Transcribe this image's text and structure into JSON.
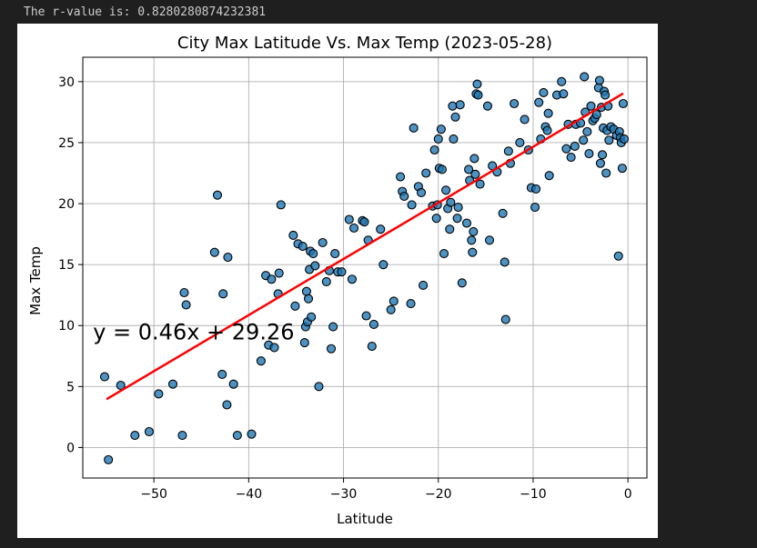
{
  "output_text": "The r-value is: 0.8280280874232381",
  "chart_data": {
    "type": "scatter",
    "title": "City Max Latitude Vs. Max Temp (2023-05-28)",
    "xlabel": "Latitude",
    "ylabel": "Max Temp",
    "xlim": [
      -57.5,
      2.0
    ],
    "ylim": [
      -2.5,
      32.0
    ],
    "xticks": [
      -50,
      -40,
      -30,
      -20,
      -10,
      0
    ],
    "xtick_labels": [
      "−50",
      "−40",
      "−30",
      "−20",
      "−10",
      "0"
    ],
    "yticks": [
      0,
      5,
      10,
      15,
      20,
      25,
      30
    ],
    "ytick_labels": [
      "0",
      "5",
      "10",
      "15",
      "20",
      "25",
      "30"
    ],
    "grid": true,
    "point_color": "#1f77b4",
    "point_edge_color": "#000000",
    "regression": {
      "slope": 0.46,
      "intercept": 29.26,
      "x_range": [
        -55,
        -0.5
      ],
      "color": "#ff0000",
      "equation_label": "y = 0.46x + 29.26",
      "label_position": [
        -57,
        9
      ]
    },
    "points": [
      [
        -54.8,
        -1.0
      ],
      [
        -55.2,
        5.8
      ],
      [
        -53.5,
        5.1
      ],
      [
        -52,
        1.0
      ],
      [
        -50.5,
        1.3
      ],
      [
        -49.5,
        4.4
      ],
      [
        -48,
        5.2
      ],
      [
        -47,
        1.0
      ],
      [
        -46.8,
        12.7
      ],
      [
        -46.6,
        11.7
      ],
      [
        -43.6,
        16.0
      ],
      [
        -43.3,
        20.7
      ],
      [
        -42.8,
        6.0
      ],
      [
        -42.7,
        12.6
      ],
      [
        -42.3,
        3.5
      ],
      [
        -42.2,
        15.6
      ],
      [
        -41.6,
        5.2
      ],
      [
        -41.2,
        1.0
      ],
      [
        -39.7,
        1.1
      ],
      [
        -38.7,
        7.1
      ],
      [
        -38.2,
        14.1
      ],
      [
        -37.9,
        8.4
      ],
      [
        -37.6,
        13.8
      ],
      [
        -37.3,
        8.2
      ],
      [
        -36.9,
        12.6
      ],
      [
        -36.8,
        14.3
      ],
      [
        -36.6,
        19.9
      ],
      [
        -35.3,
        17.4
      ],
      [
        -35.1,
        11.6
      ],
      [
        -34.8,
        16.7
      ],
      [
        -34.3,
        16.5
      ],
      [
        -34.1,
        8.6
      ],
      [
        -34.0,
        9.9
      ],
      [
        -33.8,
        10.3
      ],
      [
        -33.9,
        12.8
      ],
      [
        -33.7,
        12.2
      ],
      [
        -33.6,
        14.6
      ],
      [
        -33.5,
        16.1
      ],
      [
        -33.4,
        10.7
      ],
      [
        -33.2,
        15.9
      ],
      [
        -33.0,
        14.9
      ],
      [
        -32.6,
        5.0
      ],
      [
        -32.2,
        16.8
      ],
      [
        -31.8,
        13.6
      ],
      [
        -31.5,
        14.5
      ],
      [
        -31.3,
        8.1
      ],
      [
        -31.1,
        9.9
      ],
      [
        -30.9,
        15.9
      ],
      [
        -30.6,
        14.4
      ],
      [
        -30.2,
        14.4
      ],
      [
        -29.4,
        18.7
      ],
      [
        -29.1,
        13.8
      ],
      [
        -28.9,
        18.0
      ],
      [
        -28.0,
        18.6
      ],
      [
        -27.8,
        18.5
      ],
      [
        -27.6,
        10.8
      ],
      [
        -27.4,
        17.0
      ],
      [
        -27.0,
        8.3
      ],
      [
        -26.8,
        10.1
      ],
      [
        -26.1,
        17.9
      ],
      [
        -25.8,
        15.0
      ],
      [
        -25.0,
        11.3
      ],
      [
        -24.7,
        12.0
      ],
      [
        -24.0,
        22.2
      ],
      [
        -23.8,
        21.0
      ],
      [
        -23.6,
        20.6
      ],
      [
        -22.9,
        11.8
      ],
      [
        -22.8,
        19.9
      ],
      [
        -22.6,
        26.2
      ],
      [
        -22.1,
        21.4
      ],
      [
        -21.8,
        20.9
      ],
      [
        -21.6,
        13.3
      ],
      [
        -21.3,
        22.5
      ],
      [
        -20.6,
        19.8
      ],
      [
        -20.4,
        24.4
      ],
      [
        -20.1,
        19.9
      ],
      [
        -20.0,
        25.3
      ],
      [
        -20.2,
        18.8
      ],
      [
        -19.9,
        22.9
      ],
      [
        -19.7,
        26.1
      ],
      [
        -19.6,
        22.8
      ],
      [
        -19.4,
        15.9
      ],
      [
        -19.2,
        21.1
      ],
      [
        -19.0,
        19.6
      ],
      [
        -18.8,
        17.9
      ],
      [
        -18.7,
        20.1
      ],
      [
        -18.5,
        28.0
      ],
      [
        -18.4,
        25.3
      ],
      [
        -18.2,
        27.1
      ],
      [
        -18.0,
        18.8
      ],
      [
        -17.9,
        19.7
      ],
      [
        -17.7,
        28.1
      ],
      [
        -17.5,
        13.5
      ],
      [
        -17.0,
        18.4
      ],
      [
        -16.8,
        22.8
      ],
      [
        -16.7,
        21.9
      ],
      [
        -16.5,
        17.0
      ],
      [
        -16.4,
        16.0
      ],
      [
        -16.3,
        17.7
      ],
      [
        -16.2,
        23.7
      ],
      [
        -16.1,
        22.4
      ],
      [
        -16.0,
        29.0
      ],
      [
        -15.9,
        29.8
      ],
      [
        -15.8,
        28.9
      ],
      [
        -15.6,
        21.6
      ],
      [
        -14.8,
        28.0
      ],
      [
        -14.6,
        17.0
      ],
      [
        -14.3,
        23.1
      ],
      [
        -13.8,
        22.6
      ],
      [
        -13.2,
        19.2
      ],
      [
        -13.0,
        15.2
      ],
      [
        -12.9,
        10.5
      ],
      [
        -12.6,
        24.3
      ],
      [
        -12.4,
        23.3
      ],
      [
        -12.0,
        28.2
      ],
      [
        -11.4,
        25.0
      ],
      [
        -10.9,
        26.9
      ],
      [
        -10.5,
        24.4
      ],
      [
        -10.2,
        21.3
      ],
      [
        -9.8,
        19.7
      ],
      [
        -9.7,
        21.2
      ],
      [
        -9.4,
        28.3
      ],
      [
        -9.2,
        25.3
      ],
      [
        -8.9,
        29.1
      ],
      [
        -8.7,
        26.3
      ],
      [
        -8.5,
        26.0
      ],
      [
        -8.4,
        27.4
      ],
      [
        -8.3,
        22.3
      ],
      [
        -7.5,
        28.9
      ],
      [
        -7.0,
        30.0
      ],
      [
        -6.8,
        29.0
      ],
      [
        -6.5,
        24.5
      ],
      [
        -6.3,
        26.5
      ],
      [
        -6.0,
        23.8
      ],
      [
        -5.6,
        24.7
      ],
      [
        -5.5,
        26.5
      ],
      [
        -5.0,
        26.6
      ],
      [
        -4.7,
        25.2
      ],
      [
        -4.6,
        30.4
      ],
      [
        -4.5,
        27.5
      ],
      [
        -4.3,
        25.9
      ],
      [
        -4.1,
        24.1
      ],
      [
        -3.9,
        28.0
      ],
      [
        -3.7,
        26.8
      ],
      [
        -3.5,
        27.0
      ],
      [
        -3.3,
        27.3
      ],
      [
        -3.1,
        29.5
      ],
      [
        -3.0,
        30.1
      ],
      [
        -2.9,
        23.3
      ],
      [
        -2.8,
        27.9
      ],
      [
        -2.7,
        24.0
      ],
      [
        -2.6,
        26.2
      ],
      [
        -2.5,
        29.2
      ],
      [
        -2.4,
        28.9
      ],
      [
        -2.3,
        22.5
      ],
      [
        -2.2,
        26.0
      ],
      [
        -2.1,
        28.0
      ],
      [
        -2.0,
        25.2
      ],
      [
        -1.8,
        26.3
      ],
      [
        -1.5,
        26.1
      ],
      [
        -1.2,
        25.6
      ],
      [
        -1.0,
        15.7
      ],
      [
        -0.9,
        25.9
      ],
      [
        -0.8,
        25.4
      ],
      [
        -0.7,
        25.0
      ],
      [
        -0.6,
        22.9
      ],
      [
        -0.5,
        28.2
      ],
      [
        -0.4,
        25.3
      ]
    ]
  }
}
